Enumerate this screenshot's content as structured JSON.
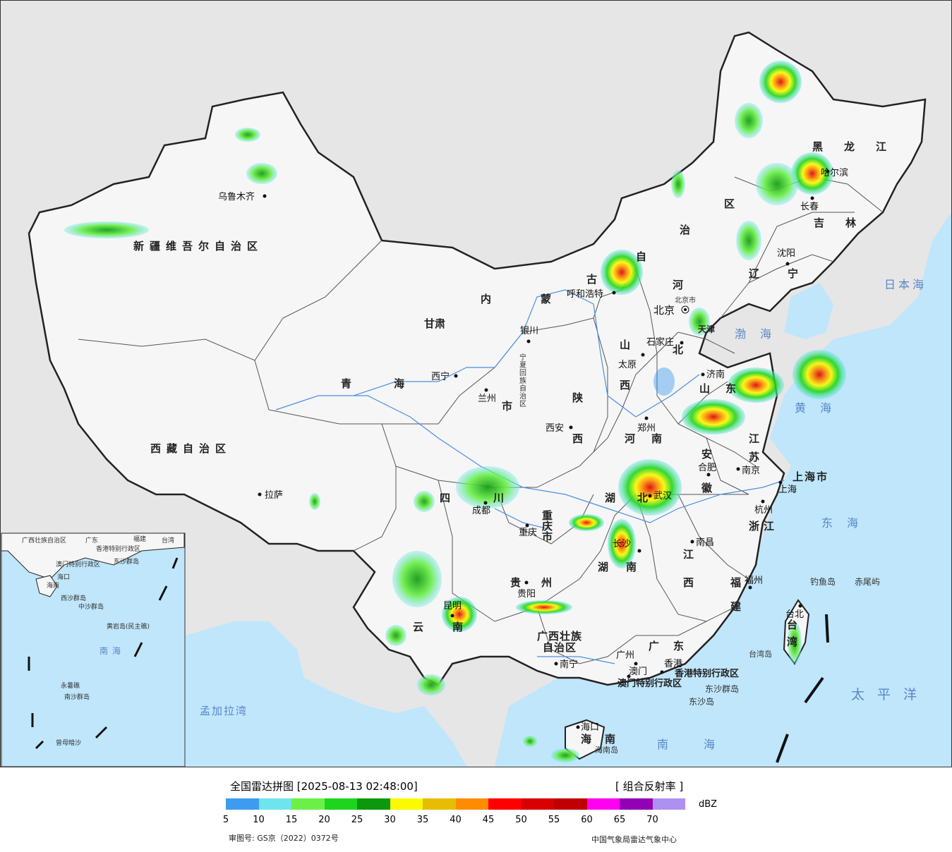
{
  "map": {
    "provinces": [
      {
        "id": "xinjiang",
        "label": "新疆维吾尔自治区"
      },
      {
        "id": "xizang",
        "label": "西藏自治区"
      },
      {
        "id": "qinghai",
        "label": "青海"
      },
      {
        "id": "gansu",
        "label": "甘肃"
      },
      {
        "id": "neimenggu-1",
        "label": "内蒙"
      },
      {
        "id": "neimenggu-2",
        "label": "古"
      },
      {
        "id": "neimenggu-3",
        "label": "自"
      },
      {
        "id": "neimenggu-4",
        "label": "治"
      },
      {
        "id": "neimenggu-5",
        "label": "区"
      },
      {
        "id": "heilongjiang",
        "label": "黑龙江"
      },
      {
        "id": "jilin",
        "label": "吉林"
      },
      {
        "id": "liaoning",
        "label": "辽宁"
      },
      {
        "id": "hebei-1",
        "label": "河"
      },
      {
        "id": "hebei-2",
        "label": "北"
      },
      {
        "id": "shanxi-1",
        "label": "山"
      },
      {
        "id": "shanxi-2",
        "label": "西"
      },
      {
        "id": "shaanxi-1",
        "label": "陕"
      },
      {
        "id": "shaanxi-2",
        "label": "西"
      },
      {
        "id": "ningxia",
        "label": "宁夏回族自治区"
      },
      {
        "id": "sichuan-1",
        "label": "四"
      },
      {
        "id": "sichuan-2",
        "label": "川"
      },
      {
        "id": "chongqing",
        "label": "重庆市"
      },
      {
        "id": "guizhou-1",
        "label": "贵"
      },
      {
        "id": "guizhou-2",
        "label": "州"
      },
      {
        "id": "yunnan-1",
        "label": "云"
      },
      {
        "id": "yunnan-2",
        "label": "南"
      },
      {
        "id": "guangxi-1",
        "label": "广西壮族"
      },
      {
        "id": "guangxi-2",
        "label": "自治区"
      },
      {
        "id": "guangdong",
        "label": "广东"
      },
      {
        "id": "hunan-1",
        "label": "湖"
      },
      {
        "id": "hunan-2",
        "label": "南"
      },
      {
        "id": "hubei-1",
        "label": "湖"
      },
      {
        "id": "hubei-2",
        "label": "北"
      },
      {
        "id": "henan-1",
        "label": "河"
      },
      {
        "id": "henan-2",
        "label": "南"
      },
      {
        "id": "shandong-1",
        "label": "山"
      },
      {
        "id": "shandong-2",
        "label": "东"
      },
      {
        "id": "jiangsu-1",
        "label": "江"
      },
      {
        "id": "jiangsu-2",
        "label": "苏"
      },
      {
        "id": "anhui-1",
        "label": "安"
      },
      {
        "id": "anhui-2",
        "label": "徽"
      },
      {
        "id": "zhejiang",
        "label": "浙江"
      },
      {
        "id": "jiangxi-1",
        "label": "江"
      },
      {
        "id": "jiangxi-2",
        "label": "西"
      },
      {
        "id": "fujian-1",
        "label": "福"
      },
      {
        "id": "fujian-2",
        "label": "建"
      },
      {
        "id": "taiwan-1",
        "label": "台"
      },
      {
        "id": "taiwan-2",
        "label": "湾"
      },
      {
        "id": "hainan-1",
        "label": "海"
      },
      {
        "id": "hainan-2",
        "label": "南"
      },
      {
        "id": "shanghai",
        "label": "上海市"
      },
      {
        "id": "hk",
        "label": "香港特别行政区"
      },
      {
        "id": "macau",
        "label": "澳门特别行政区"
      },
      {
        "id": "tianjin",
        "label": "天津"
      },
      {
        "id": "gansu-3",
        "label": "市"
      }
    ],
    "cities": [
      {
        "id": "urumqi",
        "label": "乌鲁木齐"
      },
      {
        "id": "lhasa",
        "label": "拉萨"
      },
      {
        "id": "xining",
        "label": "西宁"
      },
      {
        "id": "lanzhou",
        "label": "兰州"
      },
      {
        "id": "yinchuan",
        "label": "银川"
      },
      {
        "id": "hohhot",
        "label": "呼和浩特"
      },
      {
        "id": "beijing",
        "label": "北京"
      },
      {
        "id": "beijingshi",
        "label": "北京市"
      },
      {
        "id": "shijiazhuang",
        "label": "石家庄"
      },
      {
        "id": "taiyuan",
        "label": "太原"
      },
      {
        "id": "xian",
        "label": "西安"
      },
      {
        "id": "zhengzhou",
        "label": "郑州"
      },
      {
        "id": "jinan",
        "label": "济南"
      },
      {
        "id": "hefei",
        "label": "合肥"
      },
      {
        "id": "nanjing",
        "label": "南京"
      },
      {
        "id": "shanghai-city",
        "label": "上海"
      },
      {
        "id": "hangzhou",
        "label": "杭州"
      },
      {
        "id": "wuhan",
        "label": "武汉"
      },
      {
        "id": "changsha",
        "label": "长沙"
      },
      {
        "id": "nanchang",
        "label": "南昌"
      },
      {
        "id": "fuzhou",
        "label": "福州"
      },
      {
        "id": "taipei",
        "label": "台北"
      },
      {
        "id": "chengdu",
        "label": "成都"
      },
      {
        "id": "chongqing-city",
        "label": "重庆"
      },
      {
        "id": "guiyang",
        "label": "贵阳"
      },
      {
        "id": "kunming",
        "label": "昆明"
      },
      {
        "id": "nanning",
        "label": "南宁"
      },
      {
        "id": "guangzhou",
        "label": "广州"
      },
      {
        "id": "macau-city",
        "label": "澳门"
      },
      {
        "id": "hongkong",
        "label": "香港"
      },
      {
        "id": "haikou",
        "label": "海口"
      },
      {
        "id": "shenyang",
        "label": "沈阳"
      },
      {
        "id": "changchun",
        "label": "长春"
      },
      {
        "id": "harbin",
        "label": "哈尔滨"
      }
    ],
    "islands": [
      {
        "id": "diaoyu",
        "label": "钓鱼岛"
      },
      {
        "id": "chiwei",
        "label": "赤尾屿"
      },
      {
        "id": "taiwan-island",
        "label": "台湾岛"
      },
      {
        "id": "hainan-island",
        "label": "海南岛"
      },
      {
        "id": "dongsha-islands",
        "label": "东沙群岛"
      },
      {
        "id": "dongsha-island",
        "label": "东沙岛"
      }
    ],
    "seas": [
      {
        "id": "sea-japan",
        "label": "日本海"
      },
      {
        "id": "bohai",
        "label": "渤海"
      },
      {
        "id": "yellow-sea",
        "label": "黄海"
      },
      {
        "id": "east-sea",
        "label": "东海"
      },
      {
        "id": "pacific",
        "label": "太平洋"
      },
      {
        "id": "south-sea",
        "label": "南海"
      },
      {
        "id": "bengal",
        "label": "孟加拉湾"
      }
    ],
    "inset": {
      "labels": {
        "guangxi": "广西壮族自治区",
        "guangdong": "广东",
        "fujian": "福建",
        "taiwan": "台湾",
        "hk": "香港特别行政区",
        "macau": "澳门特别行政区",
        "dongsha": "东沙群岛",
        "hainan": "海南",
        "xisha": "西沙群岛",
        "zhongsha": "中沙群岛",
        "huangyan": "黄岩岛(民主礁)",
        "south_sea": "南海",
        "nansha": "南沙群岛",
        "yongshu": "永暑礁",
        "zengmu": "曾母暗沙",
        "haikou": "海口"
      }
    },
    "colors": {
      "land": "#f6f6f6",
      "foreign_land": "#e6e6e6",
      "sea": "#bfe6fb",
      "border": "#222222",
      "river": "#4a90e2"
    }
  },
  "legend": {
    "title": "全国雷达拼图 [2025-08-13 02:48:00]",
    "product": "[ 组合反射率 ]",
    "unit": "dBZ",
    "colors": [
      "#3d9cf0",
      "#6ee4ee",
      "#6bf048",
      "#1ed51e",
      "#0c980c",
      "#fafa00",
      "#e6bd00",
      "#ff8c00",
      "#ff0000",
      "#d80000",
      "#c00000",
      "#ff00f0",
      "#9400b4",
      "#ad90f0"
    ],
    "ticks": [
      "5",
      "10",
      "15",
      "20",
      "25",
      "30",
      "35",
      "40",
      "45",
      "50",
      "55",
      "60",
      "65",
      "70"
    ],
    "approval": "审图号: GS京（2022）0372号",
    "credit": "中国气象局雷达气象中心"
  }
}
